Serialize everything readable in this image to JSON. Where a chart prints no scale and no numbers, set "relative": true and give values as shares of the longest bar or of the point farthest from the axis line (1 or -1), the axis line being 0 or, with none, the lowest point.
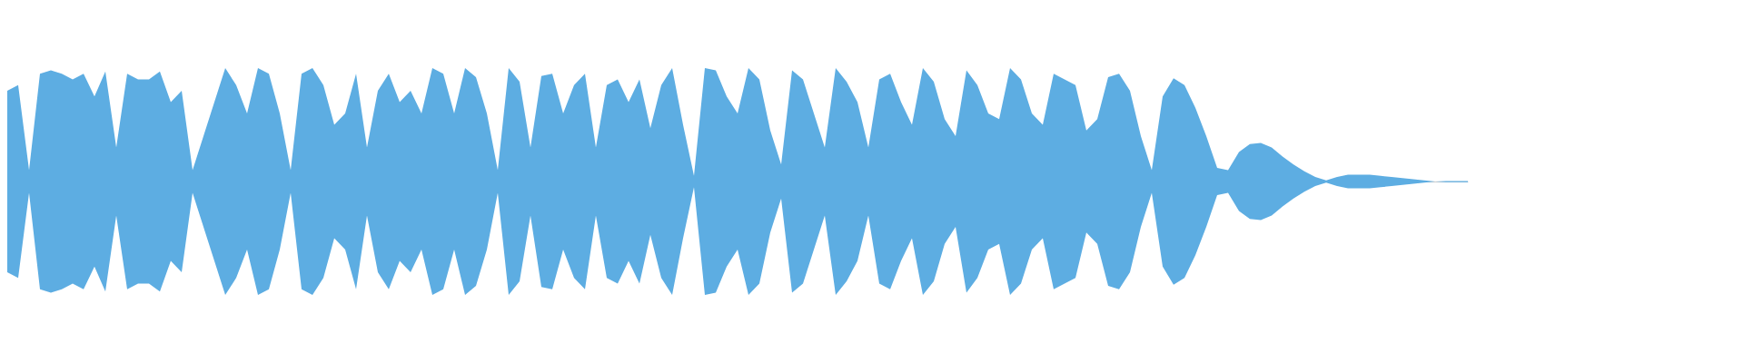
{
  "chart_data": {
    "type": "area",
    "relative": true,
    "categories": [
      null,
      null,
      null,
      null,
      null,
      null,
      null,
      null,
      null,
      null,
      null,
      null,
      null,
      null,
      null,
      null,
      null,
      null,
      null,
      null,
      null,
      null,
      null,
      null,
      null,
      null,
      null,
      null,
      null,
      null,
      null,
      null,
      null,
      null,
      null,
      null,
      null,
      null,
      null,
      null,
      null,
      null,
      null,
      null,
      null,
      null,
      null,
      null,
      null,
      null,
      null,
      null,
      null,
      null,
      null,
      null,
      null,
      null,
      null,
      null,
      null,
      null,
      null,
      null,
      null,
      null,
      null,
      null,
      null,
      null,
      null,
      null,
      null,
      null,
      null,
      null,
      null,
      null,
      null,
      null,
      null,
      null,
      null,
      null,
      null,
      null,
      null,
      null,
      null,
      null,
      null,
      null,
      null,
      null,
      null,
      null,
      null,
      null,
      null,
      null,
      null,
      null,
      null,
      null,
      null,
      null,
      null,
      null,
      null,
      null,
      null,
      null,
      null,
      null,
      null,
      null,
      null,
      null,
      null,
      null,
      null,
      null,
      null,
      null,
      null,
      null,
      null,
      null,
      null,
      null,
      null,
      null,
      null,
      null,
      null
    ],
    "series": [
      {
        "color": "#5dade2",
        "values": [
          0.8,
          0.85,
          0.1,
          0.95,
          0.98,
          0.95,
          0.9,
          0.95,
          0.75,
          0.97,
          0.3,
          0.95,
          0.9,
          0.9,
          0.97,
          0.7,
          0.8,
          0.1,
          0.4,
          0.7,
          1.0,
          0.85,
          0.6,
          1.0,
          0.95,
          0.6,
          0.1,
          0.95,
          1.0,
          0.85,
          0.5,
          0.6,
          0.95,
          0.3,
          0.8,
          0.95,
          0.7,
          0.8,
          0.6,
          1.0,
          0.95,
          0.6,
          1.0,
          0.92,
          0.6,
          0.1,
          1.0,
          0.88,
          0.3,
          0.93,
          0.95,
          0.6,
          0.85,
          0.95,
          0.3,
          0.85,
          0.9,
          0.7,
          0.9,
          0.47,
          0.85,
          1.0,
          0.5,
          0.05,
          1.0,
          0.98,
          0.75,
          0.6,
          1.0,
          0.9,
          0.45,
          0.15,
          0.98,
          0.9,
          0.6,
          0.3,
          1.0,
          0.88,
          0.7,
          0.3,
          0.9,
          0.95,
          0.7,
          0.5,
          1.0,
          0.88,
          0.55,
          0.4,
          0.98,
          0.85,
          0.6,
          0.55,
          1.0,
          0.9,
          0.6,
          0.5,
          0.95,
          0.9,
          0.85,
          0.45,
          0.55,
          0.92,
          0.95,
          0.8,
          0.4,
          0.1,
          0.75,
          0.91,
          0.85,
          0.65,
          0.4,
          0.12,
          0.1,
          0.26,
          0.33,
          0.34,
          0.3,
          0.22,
          0.15,
          0.09,
          0.04,
          0.01,
          0.04,
          0.06,
          0.06,
          0.06,
          0.05,
          0.04,
          0.03,
          0.02,
          0.01,
          0,
          0.005,
          0.005,
          0.005
        ]
      },
      {
        "color": "#5dade2",
        "values": [
          -0.8,
          -0.85,
          -0.1,
          -0.95,
          -0.98,
          -0.95,
          -0.9,
          -0.95,
          -0.75,
          -0.97,
          -0.3,
          -0.95,
          -0.9,
          -0.9,
          -0.97,
          -0.7,
          -0.8,
          -0.1,
          -0.4,
          -0.7,
          -1.0,
          -0.85,
          -0.6,
          -1.0,
          -0.95,
          -0.6,
          -0.1,
          -0.95,
          -1.0,
          -0.85,
          -0.5,
          -0.6,
          -0.95,
          -0.3,
          -0.8,
          -0.95,
          -0.7,
          -0.8,
          -0.6,
          -1.0,
          -0.95,
          -0.6,
          -1.0,
          -0.92,
          -0.6,
          -0.1,
          -1.0,
          -0.88,
          -0.3,
          -0.93,
          -0.95,
          -0.6,
          -0.85,
          -0.95,
          -0.3,
          -0.85,
          -0.9,
          -0.7,
          -0.9,
          -0.47,
          -0.85,
          -1.0,
          -0.5,
          -0.05,
          -1.0,
          -0.98,
          -0.75,
          -0.6,
          -1.0,
          -0.9,
          -0.45,
          -0.15,
          -0.98,
          -0.9,
          -0.6,
          -0.3,
          -1.0,
          -0.88,
          -0.7,
          -0.3,
          -0.9,
          -0.95,
          -0.7,
          -0.5,
          -1.0,
          -0.88,
          -0.55,
          -0.4,
          -0.98,
          -0.85,
          -0.6,
          -0.55,
          -1.0,
          -0.9,
          -0.6,
          -0.5,
          -0.95,
          -0.9,
          -0.85,
          -0.45,
          -0.55,
          -0.92,
          -0.95,
          -0.8,
          -0.4,
          -0.1,
          -0.75,
          -0.91,
          -0.85,
          -0.65,
          -0.4,
          -0.12,
          -0.1,
          -0.26,
          -0.33,
          -0.34,
          -0.3,
          -0.22,
          -0.15,
          -0.09,
          -0.04,
          -0.01,
          -0.04,
          -0.06,
          -0.06,
          -0.06,
          -0.05,
          -0.04,
          -0.03,
          -0.02,
          -0.01,
          0,
          -0.005,
          -0.005,
          -0.005
        ]
      }
    ]
  }
}
